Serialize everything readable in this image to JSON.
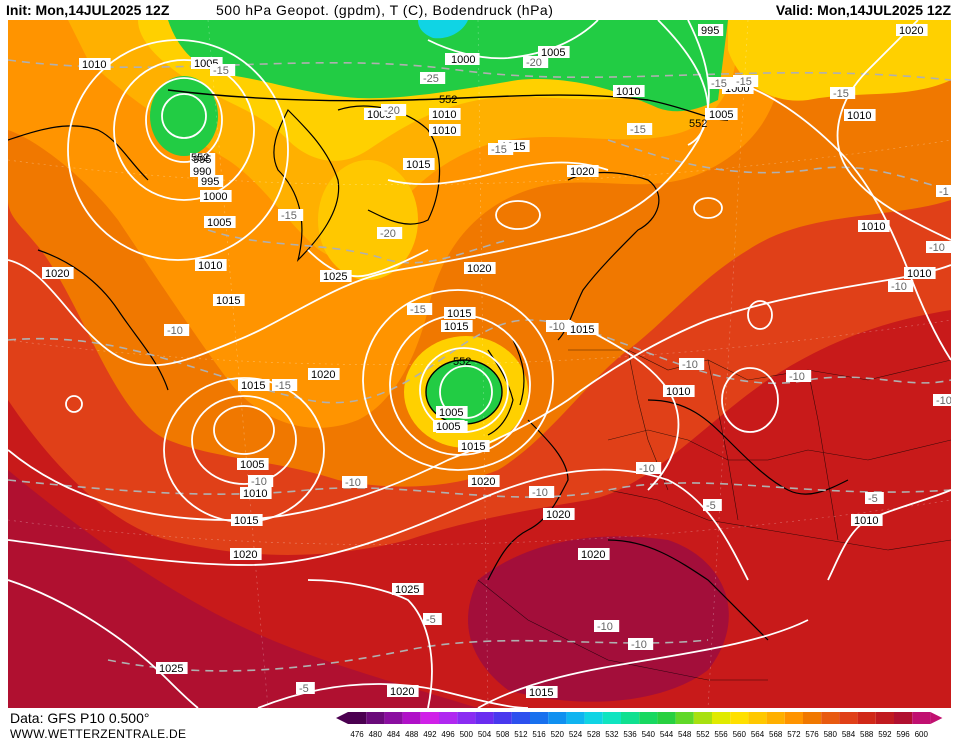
{
  "header": {
    "init": "Init: Mon,14JUL2025 12Z",
    "title": "500 hPa Geopot. (gpdm), T (C), Bodendruck (hPa)",
    "valid": "Valid: Mon,14JUL2025 12Z"
  },
  "footer": {
    "data_source": "Data: GFS P10 0.500°",
    "website": "WWW.WETTERZENTRALE.DE"
  },
  "colors": {
    "background_high": "#c81a1a",
    "ridge": "#a30e3a",
    "low_green": "#22cc44",
    "yellow": "#ffe000",
    "orange": "#ffa000",
    "isobar": "#ffffff",
    "isotherm": "#b0b0b0"
  },
  "scale": {
    "values": [
      "476",
      "480",
      "484",
      "488",
      "492",
      "496",
      "500",
      "504",
      "508",
      "512",
      "516",
      "520",
      "524",
      "528",
      "532",
      "536",
      "540",
      "544",
      "548",
      "552",
      "556",
      "560",
      "564",
      "568",
      "572",
      "576",
      "580",
      "584",
      "588",
      "592",
      "596",
      "600"
    ],
    "colors": [
      "#4b0050",
      "#6a0a7a",
      "#8a0ea0",
      "#b010c8",
      "#d020e8",
      "#b028f0",
      "#8a2cf2",
      "#6a2cf0",
      "#4838ee",
      "#2c50ee",
      "#1870ee",
      "#1090f0",
      "#10b4f0",
      "#10d4e4",
      "#10e4c0",
      "#10e090",
      "#18d860",
      "#28d040",
      "#60d828",
      "#a8e010",
      "#e0ea00",
      "#ffe000",
      "#ffc800",
      "#ffb000",
      "#ff9400",
      "#f07800",
      "#e85a10",
      "#e04018",
      "#d02818",
      "#c01a20",
      "#b01030",
      "#c01070"
    ]
  },
  "pressure_labels": [
    {
      "text": "1005"
    },
    {
      "text": "1010"
    },
    {
      "text": "1005"
    },
    {
      "text": "995"
    },
    {
      "text": "1000"
    },
    {
      "text": "1005"
    },
    {
      "text": "1010"
    },
    {
      "text": "1020"
    },
    {
      "text": "1015"
    },
    {
      "text": "1010"
    },
    {
      "text": "1015"
    },
    {
      "text": "1005"
    },
    {
      "text": "1000"
    },
    {
      "text": "995"
    },
    {
      "text": "1000"
    },
    {
      "text": "1005"
    },
    {
      "text": "1010"
    },
    {
      "text": "1015"
    },
    {
      "text": "1020"
    },
    {
      "text": "1025"
    },
    {
      "text": "1015"
    },
    {
      "text": "1015"
    },
    {
      "text": "1020"
    },
    {
      "text": "1020"
    },
    {
      "text": "1010"
    },
    {
      "text": "1015"
    },
    {
      "text": "1020"
    },
    {
      "text": "1015"
    },
    {
      "text": "1005"
    },
    {
      "text": "1010"
    },
    {
      "text": "1015"
    },
    {
      "text": "1005"
    },
    {
      "text": "1010"
    },
    {
      "text": "1015"
    },
    {
      "text": "1020"
    },
    {
      "text": "1020"
    },
    {
      "text": "1020"
    },
    {
      "text": "1020"
    },
    {
      "text": "1025"
    },
    {
      "text": "1025"
    },
    {
      "text": "1020"
    },
    {
      "text": "1015"
    },
    {
      "text": "1010"
    },
    {
      "text": "1010"
    },
    {
      "text": "1010"
    },
    {
      "text": "1010"
    },
    {
      "text": "1005"
    },
    {
      "text": "1000"
    },
    {
      "text": "1010"
    },
    {
      "text": "1005"
    },
    {
      "text": "995"
    },
    {
      "text": "990"
    }
  ],
  "temp_labels": [
    {
      "text": "-15"
    },
    {
      "text": "-25"
    },
    {
      "text": "-20"
    },
    {
      "text": "-20"
    },
    {
      "text": "-15"
    },
    {
      "text": "-15"
    },
    {
      "text": "-15"
    },
    {
      "text": "-20"
    },
    {
      "text": "-15"
    },
    {
      "text": "-15"
    },
    {
      "text": "-10"
    },
    {
      "text": "-15"
    },
    {
      "text": "-10"
    },
    {
      "text": "-10"
    },
    {
      "text": "-10"
    },
    {
      "text": "-10"
    },
    {
      "text": "-10"
    },
    {
      "text": "-5"
    },
    {
      "text": "-5"
    },
    {
      "text": "-10"
    },
    {
      "text": "-10"
    },
    {
      "text": "-5"
    },
    {
      "text": "-5"
    },
    {
      "text": "-10"
    },
    {
      "text": "-10"
    },
    {
      "text": "-15"
    },
    {
      "text": "-15"
    },
    {
      "text": "-10"
    },
    {
      "text": "-1"
    },
    {
      "text": "-10"
    },
    {
      "text": "-10"
    }
  ],
  "geopot_labels": [
    {
      "text": "552"
    },
    {
      "text": "552"
    },
    {
      "text": "552"
    },
    {
      "text": "552"
    }
  ]
}
